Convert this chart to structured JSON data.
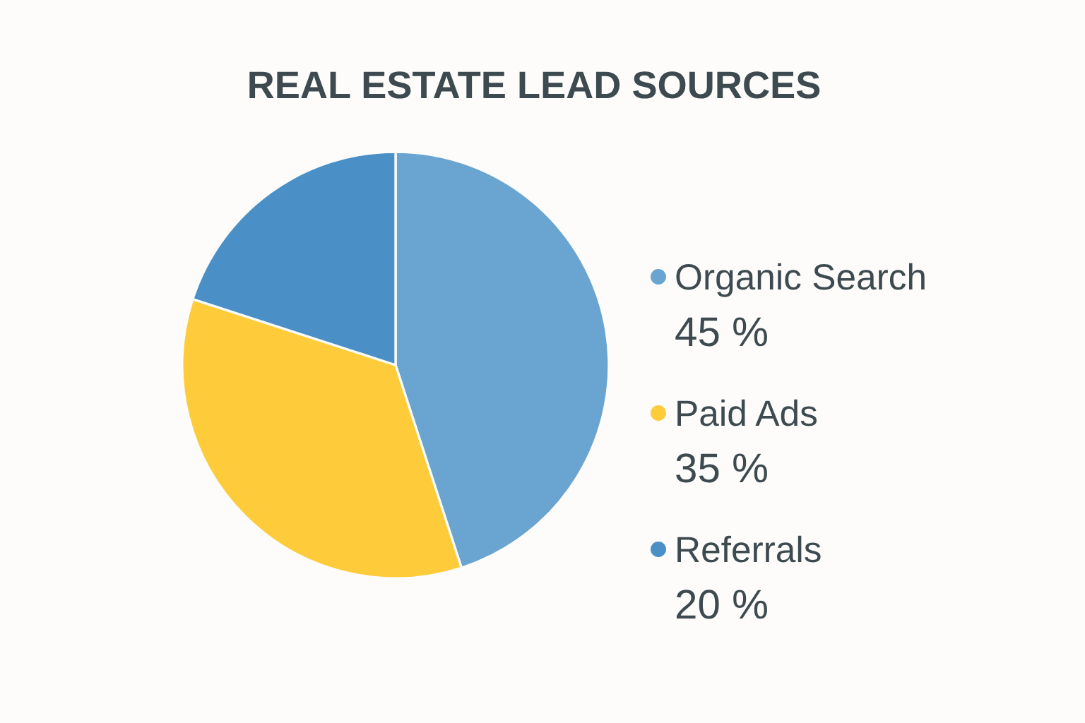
{
  "chart_data": {
    "type": "pie",
    "title": "REAL ESTATE LEAD SOURCES",
    "categories": [
      "Organic Search",
      "Paid Ads",
      "Referrals"
    ],
    "values": [
      45,
      35,
      20
    ],
    "colors": [
      "#69a5d0",
      "#fecb3a",
      "#4a90c6"
    ],
    "value_labels": [
      "45 %",
      "35 %",
      "20 %"
    ],
    "legend": "right"
  }
}
